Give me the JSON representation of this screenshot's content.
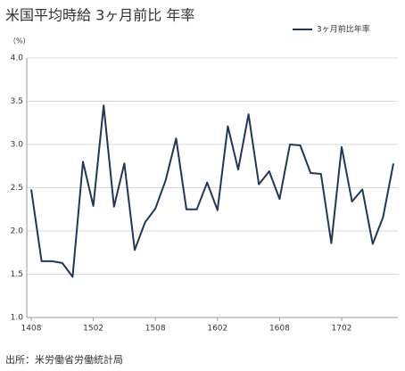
{
  "chart_data": {
    "type": "line",
    "title": "米国平均時給 3ヶ月前比 年率",
    "y_unit": "（%）",
    "source": "出所：米労働省労働統計局",
    "categories": [
      "1408",
      null,
      null,
      null,
      null,
      null,
      "1502",
      null,
      null,
      null,
      null,
      null,
      "1508",
      null,
      null,
      null,
      null,
      null,
      "1602",
      null,
      null,
      null,
      null,
      null,
      "1608",
      null,
      null,
      null,
      null,
      null,
      "1702",
      null,
      null,
      null,
      null,
      null
    ],
    "series": [
      {
        "name": "3ヶ月前比年率",
        "color": "#1f3759",
        "values": [
          2.48,
          1.65,
          1.65,
          1.63,
          1.47,
          2.8,
          2.29,
          3.45,
          2.28,
          2.78,
          1.78,
          2.1,
          2.26,
          2.59,
          3.07,
          2.25,
          2.25,
          2.56,
          2.24,
          3.21,
          2.71,
          3.35,
          2.54,
          2.69,
          2.37,
          3.0,
          2.99,
          2.67,
          2.66,
          1.86,
          2.97,
          2.34,
          2.48,
          1.85,
          2.16,
          2.78
        ]
      }
    ],
    "ylim": [
      1.0,
      4.0
    ],
    "yticks": [
      {
        "value": 1.0,
        "label": "1.0"
      },
      {
        "value": 1.5,
        "label": "1.5"
      },
      {
        "value": 2.0,
        "label": "2.0"
      },
      {
        "value": 2.5,
        "label": "2.5"
      },
      {
        "value": 3.0,
        "label": "3.0"
      },
      {
        "value": 3.5,
        "label": "3.5"
      },
      {
        "value": 4.0,
        "label": "4.0"
      }
    ],
    "grid": true,
    "legend": "top-right"
  }
}
